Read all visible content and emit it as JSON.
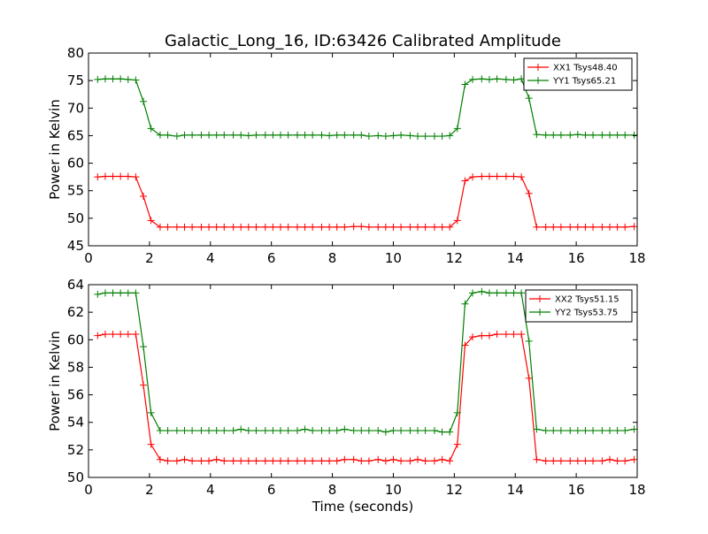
{
  "chart_data": [
    {
      "type": "line",
      "title": "Galactic_Long_16, ID:63426 Calibrated Amplitude",
      "xlabel": "",
      "ylabel": "Power in Kelvin",
      "xlim": [
        0,
        18
      ],
      "ylim": [
        45,
        80
      ],
      "xticks": [
        0,
        2,
        4,
        6,
        8,
        10,
        12,
        14,
        16,
        18
      ],
      "yticks": [
        45,
        50,
        55,
        60,
        65,
        70,
        75,
        80
      ],
      "grid": false,
      "legend_position": "top-right",
      "x": [
        0.3,
        0.55,
        0.8,
        1.05,
        1.3,
        1.55,
        1.8,
        2.05,
        2.35,
        2.6,
        2.9,
        3.15,
        3.4,
        3.7,
        3.95,
        4.2,
        4.45,
        4.75,
        5.0,
        5.25,
        5.5,
        5.8,
        6.05,
        6.3,
        6.55,
        6.85,
        7.1,
        7.35,
        7.65,
        7.9,
        8.15,
        8.4,
        8.7,
        8.95,
        9.2,
        9.5,
        9.75,
        10.0,
        10.25,
        10.55,
        10.8,
        11.05,
        11.35,
        11.6,
        11.85,
        12.1,
        12.35,
        12.6,
        12.9,
        13.15,
        13.4,
        13.7,
        13.95,
        14.2,
        14.45,
        14.7,
        15.0,
        15.25,
        15.5,
        15.8,
        16.05,
        16.3,
        16.55,
        16.85,
        17.1,
        17.35,
        17.6,
        17.9
      ],
      "series": [
        {
          "name": "XX1 Tsys48.40",
          "color": "#ff0000",
          "values": [
            57.5,
            57.6,
            57.6,
            57.6,
            57.6,
            57.5,
            54.0,
            49.6,
            48.4,
            48.4,
            48.4,
            48.4,
            48.4,
            48.4,
            48.4,
            48.4,
            48.4,
            48.4,
            48.4,
            48.4,
            48.4,
            48.4,
            48.4,
            48.4,
            48.4,
            48.4,
            48.4,
            48.4,
            48.4,
            48.4,
            48.4,
            48.4,
            48.5,
            48.5,
            48.4,
            48.4,
            48.4,
            48.4,
            48.4,
            48.4,
            48.4,
            48.4,
            48.4,
            48.4,
            48.4,
            49.6,
            56.8,
            57.5,
            57.6,
            57.6,
            57.6,
            57.6,
            57.6,
            57.5,
            54.5,
            48.4,
            48.4,
            48.4,
            48.4,
            48.4,
            48.4,
            48.4,
            48.4,
            48.4,
            48.4,
            48.4,
            48.4,
            48.5
          ]
        },
        {
          "name": "YY1 Tsys65.21",
          "color": "#008000",
          "values": [
            75.2,
            75.3,
            75.3,
            75.3,
            75.2,
            75.1,
            71.2,
            66.3,
            65.1,
            65.1,
            64.9,
            65.1,
            65.1,
            65.1,
            65.1,
            65.1,
            65.1,
            65.1,
            65.1,
            65.0,
            65.1,
            65.1,
            65.1,
            65.1,
            65.1,
            65.1,
            65.1,
            65.1,
            65.1,
            65.0,
            65.1,
            65.1,
            65.1,
            65.1,
            64.9,
            65.0,
            64.9,
            65.0,
            65.1,
            65.0,
            64.9,
            64.9,
            64.9,
            64.9,
            65.0,
            66.3,
            74.3,
            75.2,
            75.3,
            75.2,
            75.3,
            75.2,
            75.1,
            75.3,
            71.8,
            65.2,
            65.1,
            65.1,
            65.1,
            65.1,
            65.2,
            65.1,
            65.1,
            65.1,
            65.1,
            65.1,
            65.1,
            65.1
          ]
        }
      ]
    },
    {
      "type": "line",
      "title": "",
      "xlabel": "Time (seconds)",
      "ylabel": "Power in Kelvin",
      "xlim": [
        0,
        18
      ],
      "ylim": [
        50,
        64
      ],
      "xticks": [
        0,
        2,
        4,
        6,
        8,
        10,
        12,
        14,
        16,
        18
      ],
      "yticks": [
        50,
        52,
        54,
        56,
        58,
        60,
        62,
        64
      ],
      "grid": false,
      "legend_position": "top-right",
      "x": [
        0.3,
        0.55,
        0.8,
        1.05,
        1.3,
        1.55,
        1.8,
        2.05,
        2.35,
        2.6,
        2.9,
        3.15,
        3.4,
        3.7,
        3.95,
        4.2,
        4.45,
        4.75,
        5.0,
        5.25,
        5.5,
        5.8,
        6.05,
        6.3,
        6.55,
        6.85,
        7.1,
        7.35,
        7.65,
        7.9,
        8.15,
        8.4,
        8.7,
        8.95,
        9.2,
        9.5,
        9.75,
        10.0,
        10.25,
        10.55,
        10.8,
        11.05,
        11.35,
        11.6,
        11.85,
        12.1,
        12.35,
        12.6,
        12.9,
        13.15,
        13.4,
        13.7,
        13.95,
        14.2,
        14.45,
        14.7,
        15.0,
        15.25,
        15.5,
        15.8,
        16.05,
        16.3,
        16.55,
        16.85,
        17.1,
        17.35,
        17.6,
        17.9
      ],
      "series": [
        {
          "name": "XX2 Tsys51.15",
          "color": "#ff0000",
          "values": [
            60.3,
            60.4,
            60.4,
            60.4,
            60.4,
            60.4,
            56.7,
            52.4,
            51.3,
            51.2,
            51.2,
            51.3,
            51.2,
            51.2,
            51.2,
            51.3,
            51.2,
            51.2,
            51.2,
            51.2,
            51.2,
            51.2,
            51.2,
            51.2,
            51.2,
            51.2,
            51.2,
            51.2,
            51.2,
            51.2,
            51.2,
            51.3,
            51.3,
            51.2,
            51.2,
            51.3,
            51.2,
            51.3,
            51.2,
            51.2,
            51.3,
            51.2,
            51.2,
            51.3,
            51.2,
            52.4,
            59.6,
            60.2,
            60.3,
            60.3,
            60.4,
            60.4,
            60.4,
            60.4,
            57.2,
            51.3,
            51.2,
            51.2,
            51.2,
            51.2,
            51.2,
            51.2,
            51.2,
            51.2,
            51.3,
            51.2,
            51.2,
            51.3
          ]
        },
        {
          "name": "YY2 Tsys53.75",
          "color": "#008000",
          "values": [
            63.3,
            63.4,
            63.4,
            63.4,
            63.4,
            63.4,
            59.5,
            54.7,
            53.4,
            53.4,
            53.4,
            53.4,
            53.4,
            53.4,
            53.4,
            53.4,
            53.4,
            53.4,
            53.5,
            53.4,
            53.4,
            53.4,
            53.4,
            53.4,
            53.4,
            53.4,
            53.5,
            53.4,
            53.4,
            53.4,
            53.4,
            53.5,
            53.4,
            53.4,
            53.4,
            53.4,
            53.3,
            53.4,
            53.4,
            53.4,
            53.4,
            53.4,
            53.4,
            53.3,
            53.3,
            54.7,
            62.6,
            63.4,
            63.5,
            63.4,
            63.4,
            63.4,
            63.4,
            63.4,
            59.9,
            53.5,
            53.4,
            53.4,
            53.4,
            53.4,
            53.4,
            53.4,
            53.4,
            53.4,
            53.4,
            53.4,
            53.4,
            53.5
          ]
        }
      ]
    }
  ]
}
